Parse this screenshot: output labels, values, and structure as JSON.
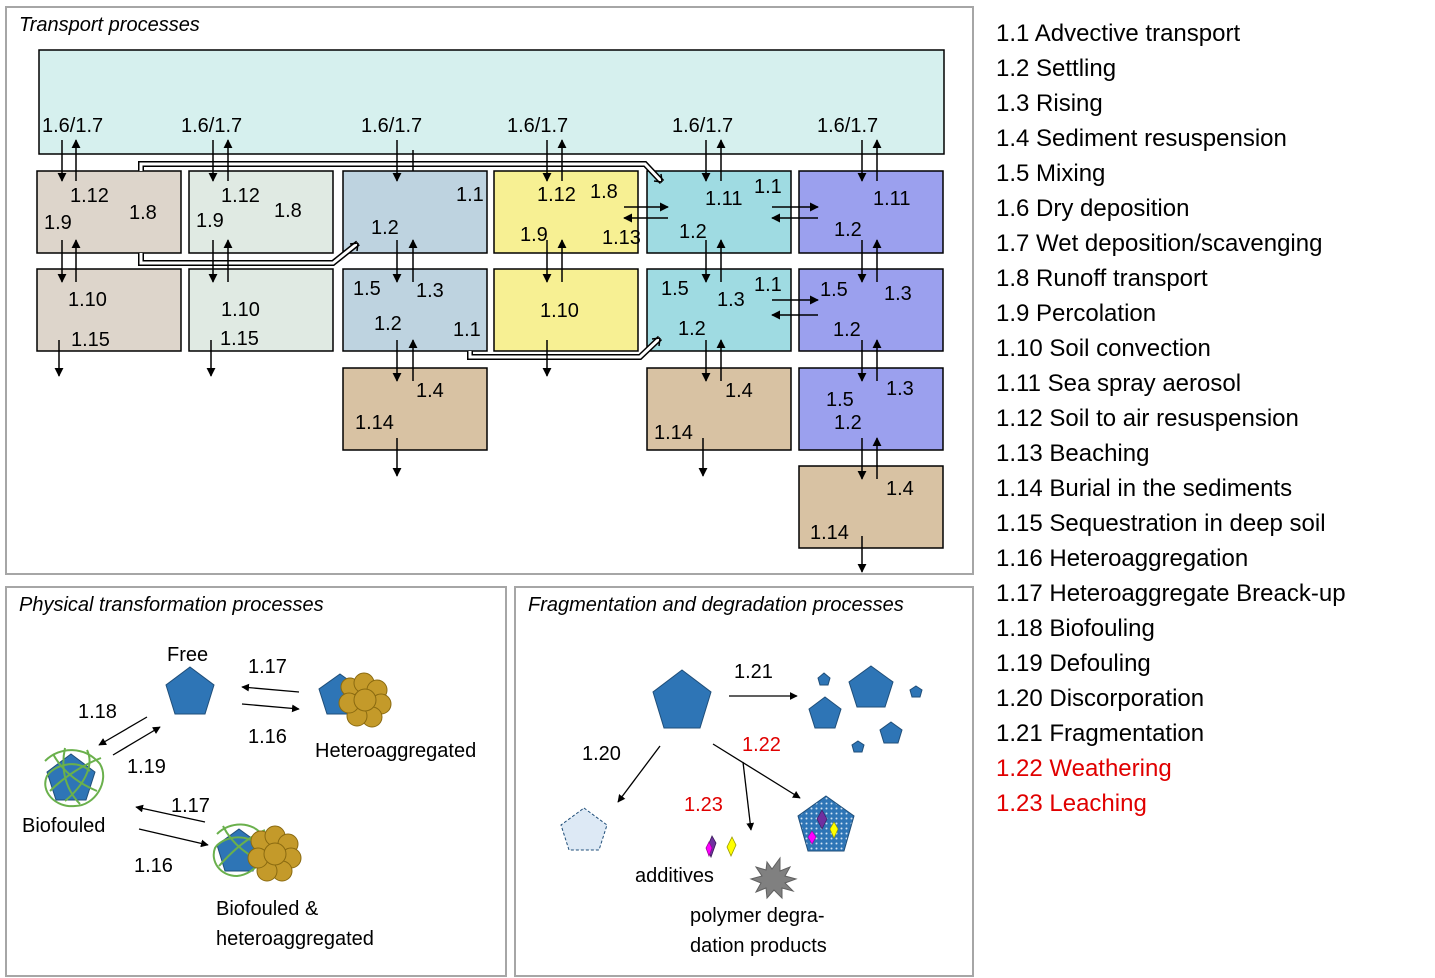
{
  "panels": {
    "transport_title": "Transport processes",
    "physical_title": "Physical transformation processes",
    "fragmentation_title": "Fragmentation and degradation processes"
  },
  "colors": {
    "air": "#d6f0ee",
    "soil1": "#ddd5cb",
    "soil2": "#e0eae3",
    "fresh": "#bed3e0",
    "yellow": "#f7f093",
    "sea": "#9fdbe2",
    "ocean": "#9ba0ee",
    "sediment": "#d8c2a3",
    "particle": "#2e75b6",
    "aggregate": "#c49a2a",
    "biofilm": "#6ab04c",
    "highlight": "#e00000"
  },
  "transport_labels": {
    "dep": "1.6/1.7",
    "advective": "1.1",
    "settling": "1.2",
    "rising": "1.3",
    "resuspension": "1.4",
    "mixing": "1.5",
    "runoff": "1.8",
    "percolation": "1.9",
    "convection": "1.10",
    "spray": "1.11",
    "soil_air": "1.12",
    "beaching": "1.13",
    "burial": "1.14",
    "sequestration": "1.15"
  },
  "physical": {
    "free": "Free",
    "heteroaggregated": "Heteroaggregated",
    "biofouled": "Biofouled",
    "biofouled_hetero_line1": "Biofouled &",
    "biofouled_hetero_line2": "heteroaggregated",
    "hetero": "1.16",
    "breakup": "1.17",
    "biofouling": "1.18",
    "defouling": "1.19"
  },
  "fragmentation": {
    "discorporation": "1.20",
    "fragmentation": "1.21",
    "weathering": "1.22",
    "leaching": "1.23",
    "additives": "additives",
    "polymer_line1": "polymer degra-",
    "polymer_line2": "dation products"
  },
  "legend": [
    {
      "text": "1.1 Advective transport",
      "highlight": false
    },
    {
      "text": "1.2 Settling",
      "highlight": false
    },
    {
      "text": "1.3 Rising",
      "highlight": false
    },
    {
      "text": "1.4 Sediment resuspension",
      "highlight": false
    },
    {
      "text": "1.5 Mixing",
      "highlight": false
    },
    {
      "text": "1.6 Dry deposition",
      "highlight": false
    },
    {
      "text": "1.7 Wet deposition/scavenging",
      "highlight": false
    },
    {
      "text": "1.8 Runoff transport",
      "highlight": false
    },
    {
      "text": "1.9 Percolation",
      "highlight": false
    },
    {
      "text": "1.10 Soil convection",
      "highlight": false
    },
    {
      "text": "1.11 Sea spray aerosol",
      "highlight": false
    },
    {
      "text": "1.12 Soil to air resuspension",
      "highlight": false
    },
    {
      "text": "1.13 Beaching",
      "highlight": false
    },
    {
      "text": "1.14 Burial in the sediments",
      "highlight": false
    },
    {
      "text": "1.15 Sequestration in deep soil",
      "highlight": false
    },
    {
      "text": "1.16 Heteroaggregation",
      "highlight": false
    },
    {
      "text": "1.17 Heteroaggregate Breack-up",
      "highlight": false
    },
    {
      "text": "1.18 Biofouling",
      "highlight": false
    },
    {
      "text": "1.19 Defouling",
      "highlight": false
    },
    {
      "text": "1.20 Discorporation",
      "highlight": false
    },
    {
      "text": "1.21 Fragmentation",
      "highlight": false
    },
    {
      "text": "1.22 Weathering",
      "highlight": true
    },
    {
      "text": "1.23 Leaching",
      "highlight": true
    }
  ]
}
